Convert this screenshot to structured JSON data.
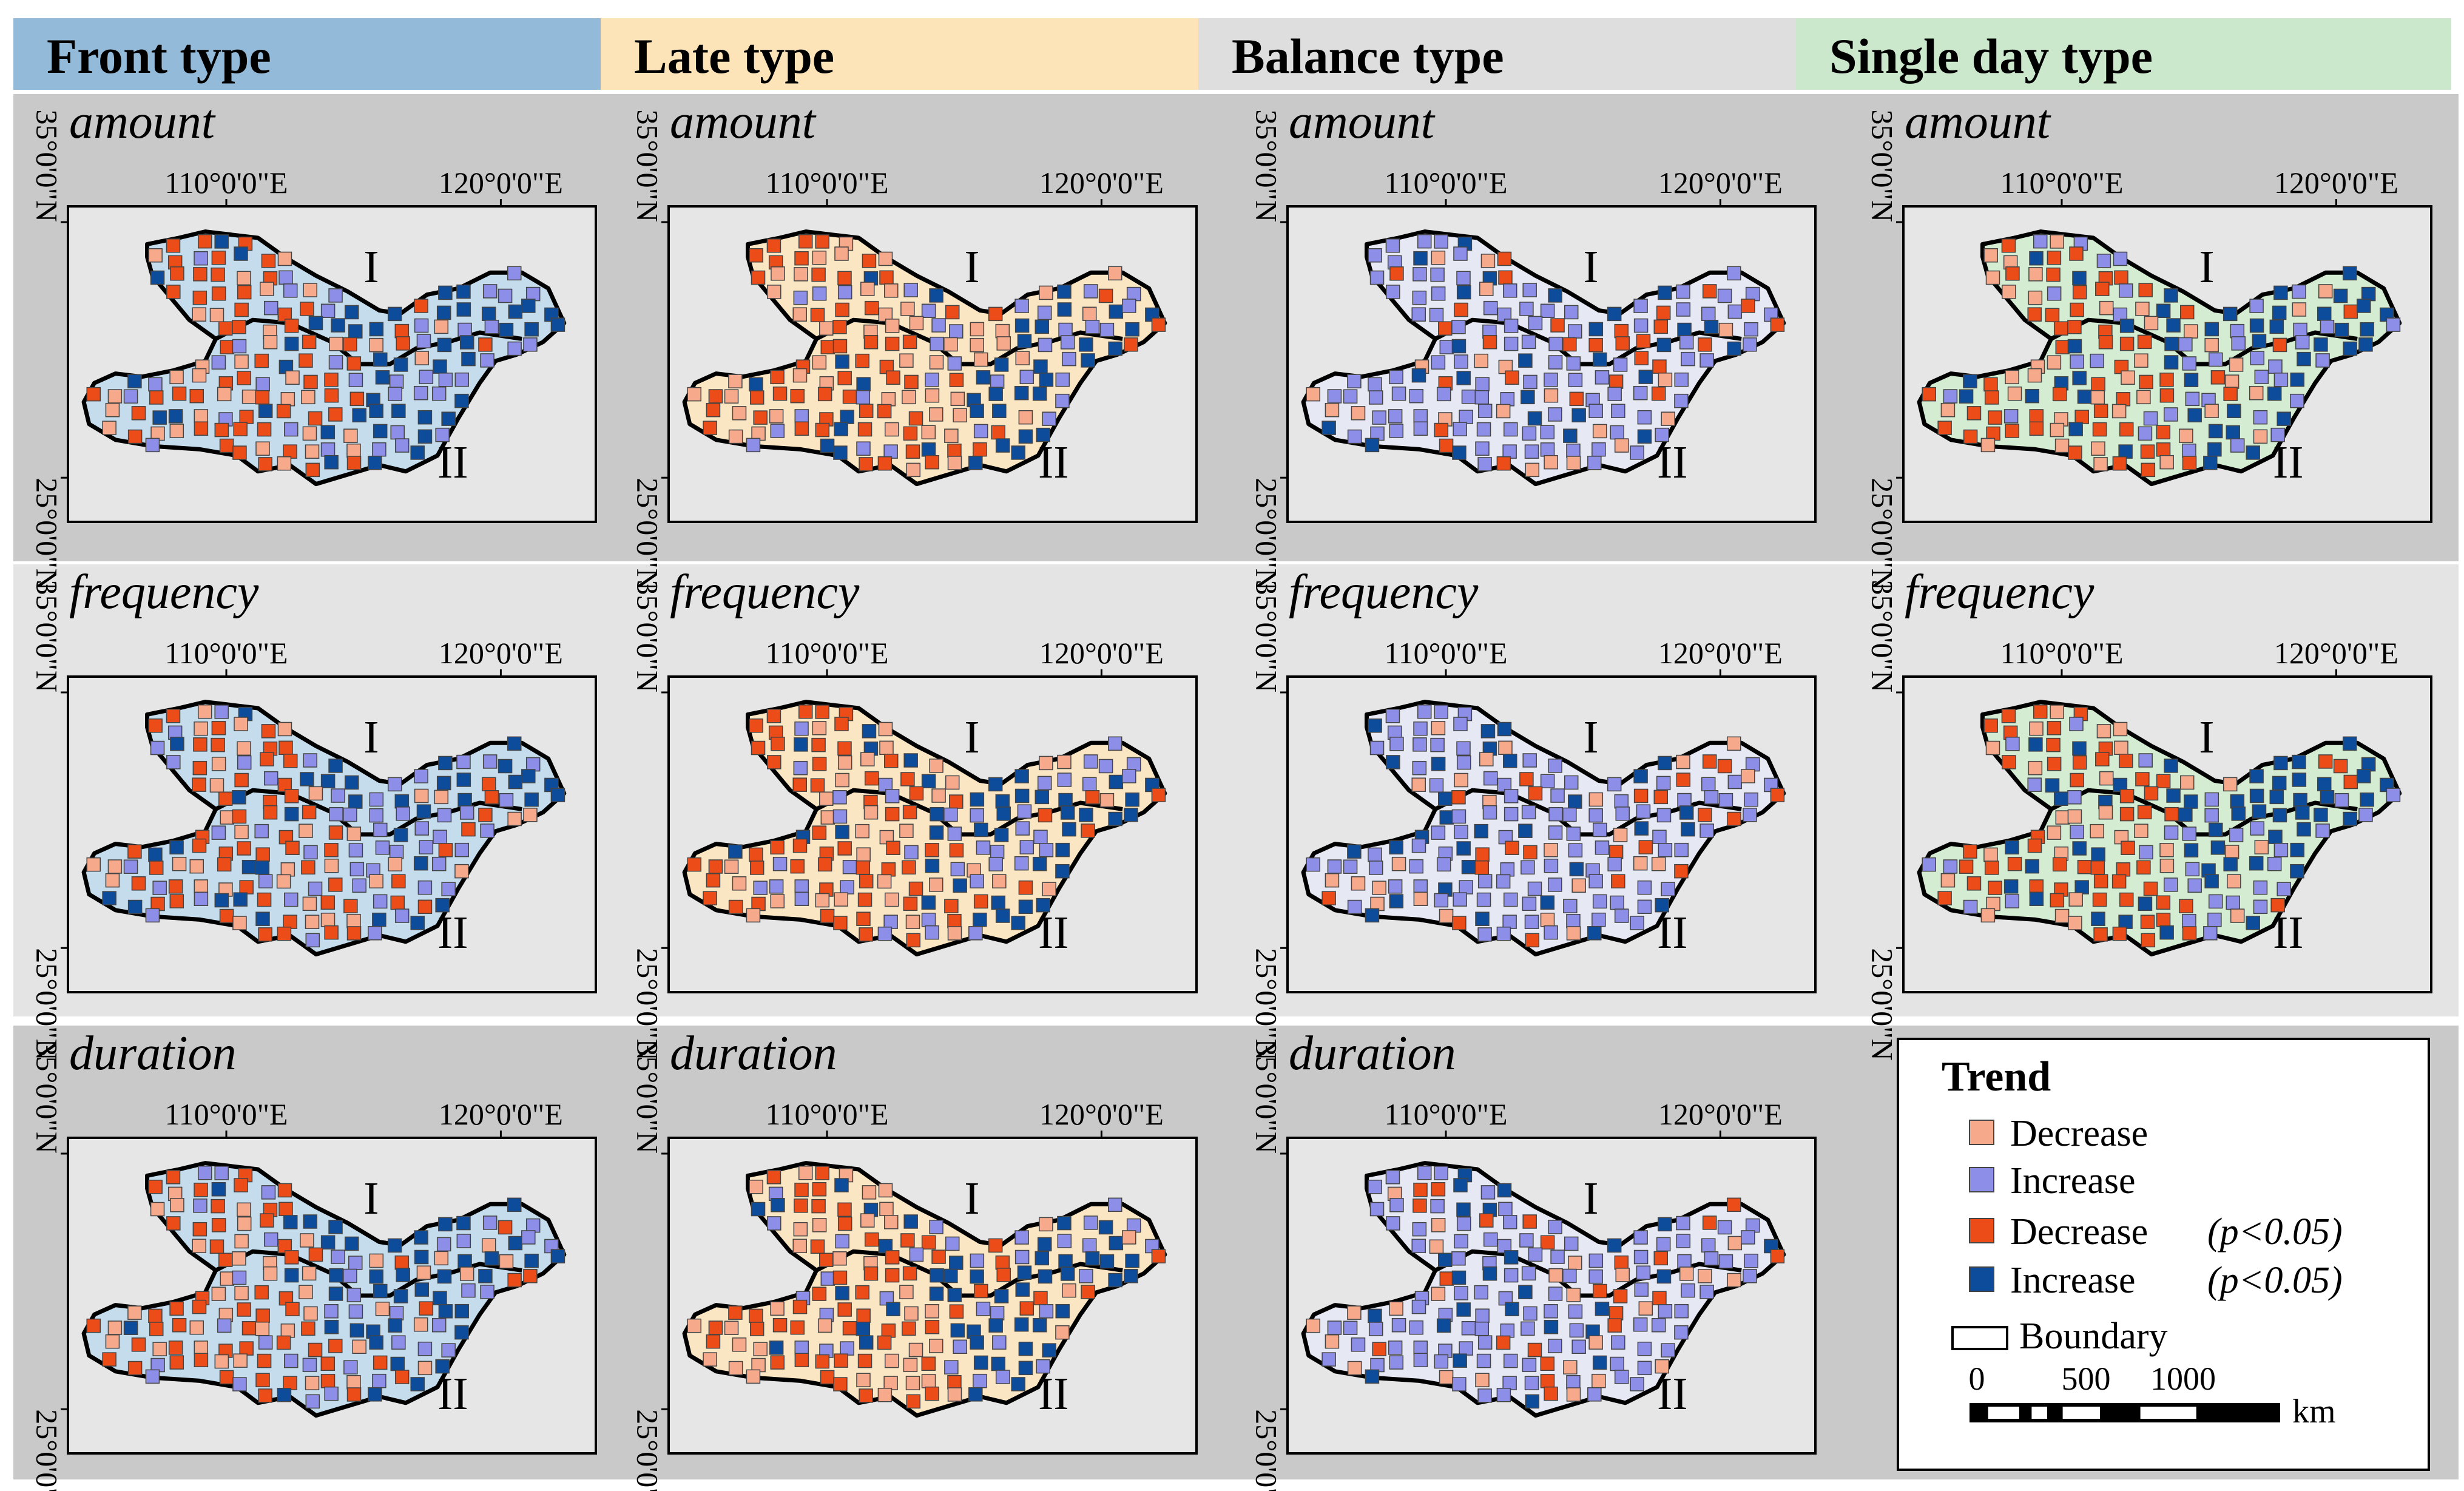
{
  "columns": [
    {
      "title": "Front type",
      "header_color": "#93bad9",
      "fill": "#c4dcec"
    },
    {
      "title": "Late type",
      "header_color": "#fce4b8",
      "fill": "#fbe6c4"
    },
    {
      "title": "Balance type",
      "header_color": "#dedede",
      "fill": "#e6e8f4"
    },
    {
      "title": "Single day type",
      "header_color": "#cbe8cd",
      "fill": "#d3ecd2"
    }
  ],
  "rows": [
    {
      "label": "amount",
      "band_color": "#c9c9c9"
    },
    {
      "label": "frequency",
      "band_color": "#e4e4e4"
    },
    {
      "label": "duration",
      "band_color": "#c9c9c9"
    }
  ],
  "axes": {
    "lon_labels": [
      "110°0'0\"E",
      "120°0'0\"E"
    ],
    "lat_labels": [
      "35°0'0\"N",
      "25°0'0\"N"
    ]
  },
  "region_labels": [
    "I",
    "II"
  ],
  "legend": {
    "title": "Trend",
    "items": [
      {
        "label": "Decrease",
        "suffix": "",
        "color": "#f6a98b"
      },
      {
        "label": "Increase",
        "suffix": "",
        "color": "#8c8ee8"
      },
      {
        "label": "Decrease",
        "suffix": "(p<0.05)",
        "color": "#ec4c17"
      },
      {
        "label": "Increase",
        "suffix": "(p<0.05)",
        "color": "#0d4c9a"
      }
    ],
    "boundary_label": "Boundary",
    "scale": {
      "ticks": [
        "0",
        "500",
        "1000"
      ],
      "unit": "km"
    }
  }
}
